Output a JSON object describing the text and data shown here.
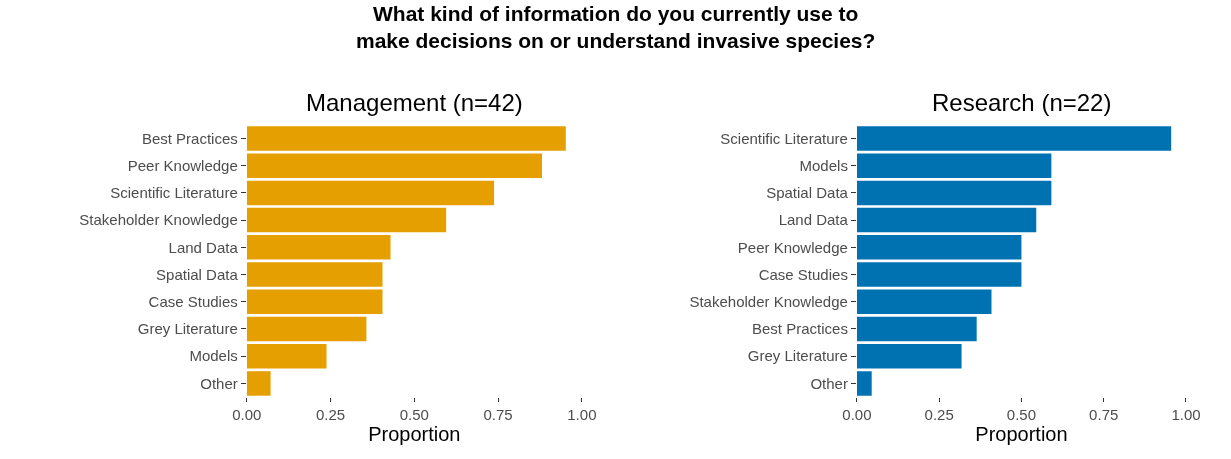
{
  "chart_data": [
    {
      "type": "bar",
      "orientation": "horizontal",
      "title": "What kind of information do you currently use to\nmake decisions on or understand invasive species?",
      "subtitle": "Management (n=42)",
      "categories": [
        "Best Practices",
        "Peer Knowledge",
        "Scientific Literature",
        "Stakeholder Knowledge",
        "Land Data",
        "Spatial Data",
        "Case Studies",
        "Grey Literature",
        "Models",
        "Other"
      ],
      "values": [
        0.952,
        0.881,
        0.738,
        0.595,
        0.429,
        0.405,
        0.405,
        0.357,
        0.238,
        0.071
      ],
      "color": "#e69f00",
      "xlim": [
        0,
        1
      ],
      "xticks": [
        {
          "value": 0,
          "label": "0.00"
        },
        {
          "value": 0.25,
          "label": "0.25"
        },
        {
          "value": 0.5,
          "label": "0.50"
        },
        {
          "value": 0.75,
          "label": "0.75"
        },
        {
          "value": 1,
          "label": "1.00"
        }
      ],
      "xlabel": "Proportion"
    },
    {
      "type": "bar",
      "orientation": "horizontal",
      "subtitle": "Research (n=22)",
      "categories": [
        "Scientific Literature",
        "Models",
        "Spatial Data",
        "Land Data",
        "Peer Knowledge",
        "Case Studies",
        "Stakeholder Knowledge",
        "Best Practices",
        "Grey Literature",
        "Other"
      ],
      "values": [
        0.955,
        0.591,
        0.591,
        0.545,
        0.5,
        0.5,
        0.409,
        0.364,
        0.318,
        0.045
      ],
      "color": "#0072b2",
      "xlim": [
        0,
        1
      ],
      "xticks": [
        {
          "value": 0,
          "label": "0.00"
        },
        {
          "value": 0.25,
          "label": "0.25"
        },
        {
          "value": 0.5,
          "label": "0.50"
        },
        {
          "value": 0.75,
          "label": "0.75"
        },
        {
          "value": 1,
          "label": "1.00"
        }
      ],
      "xlabel": "Proportion"
    }
  ]
}
